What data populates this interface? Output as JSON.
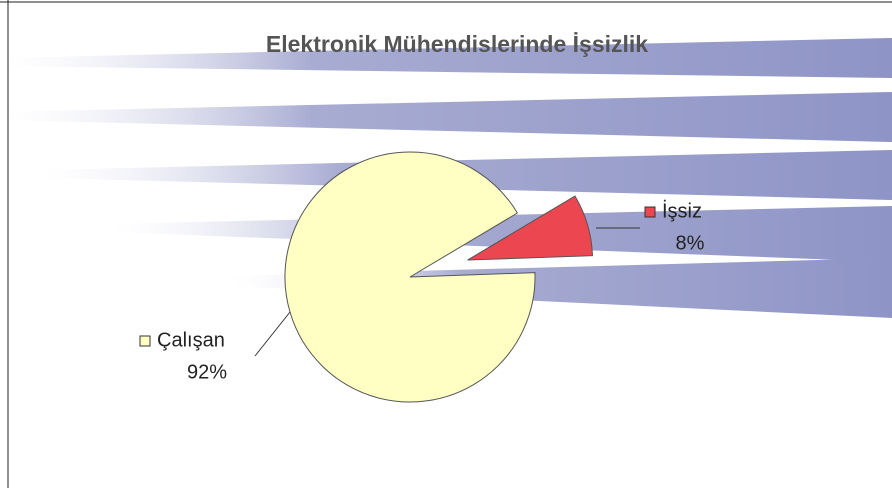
{
  "chart_data": {
    "type": "pie",
    "title": "Elektronik Mühendislerinde İşsizlik",
    "categories": [
      "Çalışan",
      "İşsiz"
    ],
    "values": [
      92,
      8
    ],
    "value_labels": [
      "92%",
      "8%"
    ],
    "colors": [
      "#ffffc4",
      "#ec4650"
    ]
  }
}
